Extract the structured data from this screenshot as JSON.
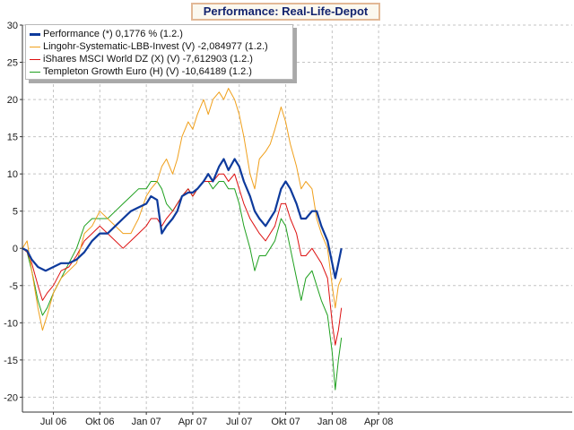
{
  "chart_data": {
    "type": "line",
    "title": "Performance: Real-Life-Depot",
    "xlabel": "",
    "ylabel": "",
    "ylim": [
      -22,
      30
    ],
    "yticks": [
      -20,
      -15,
      -10,
      -5,
      0,
      5,
      10,
      15,
      20,
      25,
      30
    ],
    "x_axis_months_from_2006_05": [
      0,
      35.5
    ],
    "xticks": [
      {
        "label": "Jul 06",
        "month": 2
      },
      {
        "label": "Okt 06",
        "month": 5
      },
      {
        "label": "Jan 07",
        "month": 8
      },
      {
        "label": "Apr 07",
        "month": 11
      },
      {
        "label": "Jul 07",
        "month": 14
      },
      {
        "label": "Okt 07",
        "month": 17
      },
      {
        "label": "Jan 08",
        "month": 20
      },
      {
        "label": "Apr 08",
        "month": 23
      }
    ],
    "grid": true,
    "legend_position": "top-left",
    "series": [
      {
        "name": "Performance (*) 0,1776 % (1.2.)",
        "color": "#0d3a9c",
        "width": 2.2,
        "points": [
          [
            0,
            0
          ],
          [
            0.3,
            -0.3
          ],
          [
            0.6,
            -1.5
          ],
          [
            1,
            -2.5
          ],
          [
            1.5,
            -3
          ],
          [
            2,
            -2.5
          ],
          [
            2.5,
            -2
          ],
          [
            3,
            -2
          ],
          [
            3.5,
            -1.5
          ],
          [
            4,
            -0.5
          ],
          [
            4.5,
            1
          ],
          [
            5,
            2
          ],
          [
            5.5,
            2
          ],
          [
            6,
            3
          ],
          [
            6.5,
            4
          ],
          [
            7,
            5
          ],
          [
            7.5,
            5.5
          ],
          [
            8,
            6
          ],
          [
            8.3,
            7
          ],
          [
            8.7,
            6.5
          ],
          [
            9,
            2
          ],
          [
            9.3,
            3
          ],
          [
            9.7,
            4
          ],
          [
            10,
            5
          ],
          [
            10.3,
            7
          ],
          [
            10.7,
            7.5
          ],
          [
            11,
            7.5
          ],
          [
            11.3,
            8
          ],
          [
            11.7,
            9
          ],
          [
            12,
            10
          ],
          [
            12.3,
            9
          ],
          [
            12.7,
            11
          ],
          [
            13,
            12
          ],
          [
            13.3,
            10.5
          ],
          [
            13.7,
            12
          ],
          [
            14,
            11
          ],
          [
            14.3,
            9
          ],
          [
            14.7,
            7
          ],
          [
            15,
            5
          ],
          [
            15.3,
            4
          ],
          [
            15.7,
            3
          ],
          [
            16,
            4
          ],
          [
            16.3,
            5
          ],
          [
            16.7,
            8
          ],
          [
            17,
            9
          ],
          [
            17.3,
            8
          ],
          [
            17.7,
            6
          ],
          [
            18,
            4
          ],
          [
            18.3,
            4
          ],
          [
            18.7,
            5
          ],
          [
            19,
            5
          ],
          [
            19.3,
            3
          ],
          [
            19.7,
            1
          ],
          [
            20,
            -2
          ],
          [
            20.2,
            -4
          ],
          [
            20.4,
            -2
          ],
          [
            20.6,
            0
          ]
        ]
      },
      {
        "name": "Lingohr-Systematic-LBB-Invest (V) -2,084977 (1.2.)",
        "color": "#f0a01c",
        "width": 1,
        "points": [
          [
            0,
            0
          ],
          [
            0.3,
            1
          ],
          [
            0.6,
            -3
          ],
          [
            1,
            -8
          ],
          [
            1.3,
            -11
          ],
          [
            1.6,
            -9
          ],
          [
            2,
            -6
          ],
          [
            2.5,
            -4
          ],
          [
            3,
            -3
          ],
          [
            3.5,
            -2
          ],
          [
            4,
            2
          ],
          [
            4.5,
            3
          ],
          [
            5,
            5
          ],
          [
            5.5,
            4
          ],
          [
            6,
            3
          ],
          [
            6.5,
            2
          ],
          [
            7,
            2
          ],
          [
            7.5,
            4
          ],
          [
            8,
            7
          ],
          [
            8.3,
            8
          ],
          [
            8.7,
            9
          ],
          [
            9,
            11
          ],
          [
            9.3,
            12
          ],
          [
            9.7,
            10
          ],
          [
            10,
            12
          ],
          [
            10.3,
            15
          ],
          [
            10.7,
            17
          ],
          [
            11,
            16
          ],
          [
            11.3,
            18
          ],
          [
            11.7,
            20
          ],
          [
            12,
            18
          ],
          [
            12.3,
            20
          ],
          [
            12.7,
            21
          ],
          [
            13,
            20
          ],
          [
            13.3,
            21.5
          ],
          [
            13.7,
            20
          ],
          [
            14,
            18
          ],
          [
            14.3,
            15
          ],
          [
            14.7,
            10
          ],
          [
            15,
            8
          ],
          [
            15.3,
            12
          ],
          [
            15.7,
            13
          ],
          [
            16,
            14
          ],
          [
            16.3,
            16
          ],
          [
            16.7,
            19
          ],
          [
            17,
            17
          ],
          [
            17.3,
            14
          ],
          [
            17.7,
            11
          ],
          [
            18,
            8
          ],
          [
            18.3,
            9
          ],
          [
            18.7,
            8
          ],
          [
            19,
            4
          ],
          [
            19.3,
            2
          ],
          [
            19.7,
            0
          ],
          [
            20,
            -5
          ],
          [
            20.2,
            -8
          ],
          [
            20.4,
            -5
          ],
          [
            20.6,
            -4
          ]
        ]
      },
      {
        "name": "iShares MSCI World DZ (X) (V) -7,612903 (1.2.)",
        "color": "#dd1111",
        "width": 1,
        "points": [
          [
            0,
            0
          ],
          [
            0.3,
            -0.5
          ],
          [
            0.6,
            -2
          ],
          [
            1,
            -5
          ],
          [
            1.3,
            -7
          ],
          [
            1.6,
            -6
          ],
          [
            2,
            -5
          ],
          [
            2.5,
            -3
          ],
          [
            3,
            -2.5
          ],
          [
            3.5,
            -1
          ],
          [
            4,
            1
          ],
          [
            4.5,
            2
          ],
          [
            5,
            3
          ],
          [
            5.5,
            2
          ],
          [
            6,
            1
          ],
          [
            6.5,
            0
          ],
          [
            7,
            1
          ],
          [
            7.5,
            2
          ],
          [
            8,
            3
          ],
          [
            8.3,
            4
          ],
          [
            8.7,
            4
          ],
          [
            9,
            3
          ],
          [
            9.3,
            4
          ],
          [
            9.7,
            5
          ],
          [
            10,
            6
          ],
          [
            10.3,
            7
          ],
          [
            10.7,
            8
          ],
          [
            11,
            7
          ],
          [
            11.3,
            8
          ],
          [
            11.7,
            9
          ],
          [
            12,
            9
          ],
          [
            12.3,
            9
          ],
          [
            12.7,
            10
          ],
          [
            13,
            10
          ],
          [
            13.3,
            9
          ],
          [
            13.7,
            10
          ],
          [
            14,
            8
          ],
          [
            14.3,
            6
          ],
          [
            14.7,
            4
          ],
          [
            15,
            3
          ],
          [
            15.3,
            2
          ],
          [
            15.7,
            1
          ],
          [
            16,
            2
          ],
          [
            16.3,
            3
          ],
          [
            16.7,
            6
          ],
          [
            17,
            6
          ],
          [
            17.3,
            4
          ],
          [
            17.7,
            2
          ],
          [
            18,
            -1
          ],
          [
            18.3,
            -1
          ],
          [
            18.7,
            0
          ],
          [
            19,
            -1
          ],
          [
            19.3,
            -2
          ],
          [
            19.7,
            -4
          ],
          [
            20,
            -10
          ],
          [
            20.2,
            -13
          ],
          [
            20.4,
            -11
          ],
          [
            20.6,
            -8
          ]
        ]
      },
      {
        "name": "Templeton Growth Euro (H) (V) -10,64189 (1.2.)",
        "color": "#1fa01f",
        "width": 1,
        "points": [
          [
            0,
            0
          ],
          [
            0.3,
            -0.5
          ],
          [
            0.6,
            -3
          ],
          [
            1,
            -7
          ],
          [
            1.3,
            -9
          ],
          [
            1.6,
            -8
          ],
          [
            2,
            -6
          ],
          [
            2.5,
            -4
          ],
          [
            3,
            -2
          ],
          [
            3.5,
            0
          ],
          [
            4,
            3
          ],
          [
            4.5,
            4
          ],
          [
            5,
            4
          ],
          [
            5.5,
            4
          ],
          [
            6,
            5
          ],
          [
            6.5,
            6
          ],
          [
            7,
            7
          ],
          [
            7.5,
            8
          ],
          [
            8,
            8
          ],
          [
            8.3,
            9
          ],
          [
            8.7,
            9
          ],
          [
            9,
            8
          ],
          [
            9.3,
            6
          ],
          [
            9.7,
            5
          ],
          [
            10,
            6
          ],
          [
            10.3,
            7
          ],
          [
            10.7,
            8
          ],
          [
            11,
            7
          ],
          [
            11.3,
            8
          ],
          [
            11.7,
            9
          ],
          [
            12,
            9
          ],
          [
            12.3,
            8
          ],
          [
            12.7,
            9
          ],
          [
            13,
            9
          ],
          [
            13.3,
            8
          ],
          [
            13.7,
            8
          ],
          [
            14,
            6
          ],
          [
            14.3,
            3
          ],
          [
            14.7,
            0
          ],
          [
            15,
            -3
          ],
          [
            15.3,
            -1
          ],
          [
            15.7,
            -1
          ],
          [
            16,
            0
          ],
          [
            16.3,
            1
          ],
          [
            16.7,
            4
          ],
          [
            17,
            3
          ],
          [
            17.3,
            0
          ],
          [
            17.7,
            -4
          ],
          [
            18,
            -7
          ],
          [
            18.3,
            -4
          ],
          [
            18.7,
            -3
          ],
          [
            19,
            -5
          ],
          [
            19.3,
            -7
          ],
          [
            19.7,
            -9
          ],
          [
            20,
            -14
          ],
          [
            20.2,
            -19
          ],
          [
            20.4,
            -15
          ],
          [
            20.6,
            -12
          ]
        ]
      }
    ]
  }
}
